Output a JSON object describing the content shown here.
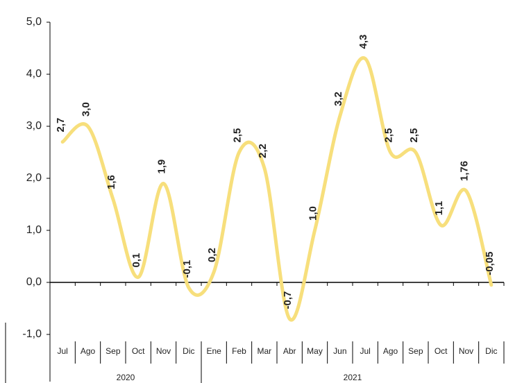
{
  "chart_data": {
    "type": "line",
    "categories": [
      "Jul",
      "Ago",
      "Sep",
      "Oct",
      "Nov",
      "Dic",
      "Ene",
      "Feb",
      "Mar",
      "Abr",
      "May",
      "Jun",
      "Jul",
      "Ago",
      "Sep",
      "Oct",
      "Nov",
      "Dic"
    ],
    "groups": [
      {
        "label": "2020",
        "count": 6
      },
      {
        "label": "2021",
        "count": 12
      }
    ],
    "series": [
      {
        "color": "#f7df7c",
        "values": [
          2.7,
          3.0,
          1.6,
          0.1,
          1.9,
          -0.1,
          0.2,
          2.5,
          2.2,
          -0.7,
          1.0,
          3.2,
          4.3,
          2.5,
          2.5,
          1.1,
          1.76,
          -0.05
        ],
        "value_labels": [
          "2,7",
          "3,0",
          "1,6",
          "0,1",
          "1,9",
          "-0,1",
          "0,2",
          "2,5",
          "2,2",
          "-0,7",
          "1,0",
          "3,2",
          "4,3",
          "2,5",
          "2,5",
          "1,1",
          "1,76",
          "-0,05"
        ]
      }
    ],
    "ylim": [
      -1,
      5
    ],
    "yticks": [
      {
        "value": -1,
        "label": "-1,0"
      },
      {
        "value": 0,
        "label": "0,0"
      },
      {
        "value": 1,
        "label": "1,0"
      },
      {
        "value": 2,
        "label": "2,0"
      },
      {
        "value": 3,
        "label": "3,0"
      },
      {
        "value": 4,
        "label": "4,0"
      },
      {
        "value": 5,
        "label": "5,0"
      }
    ],
    "grid": false
  }
}
